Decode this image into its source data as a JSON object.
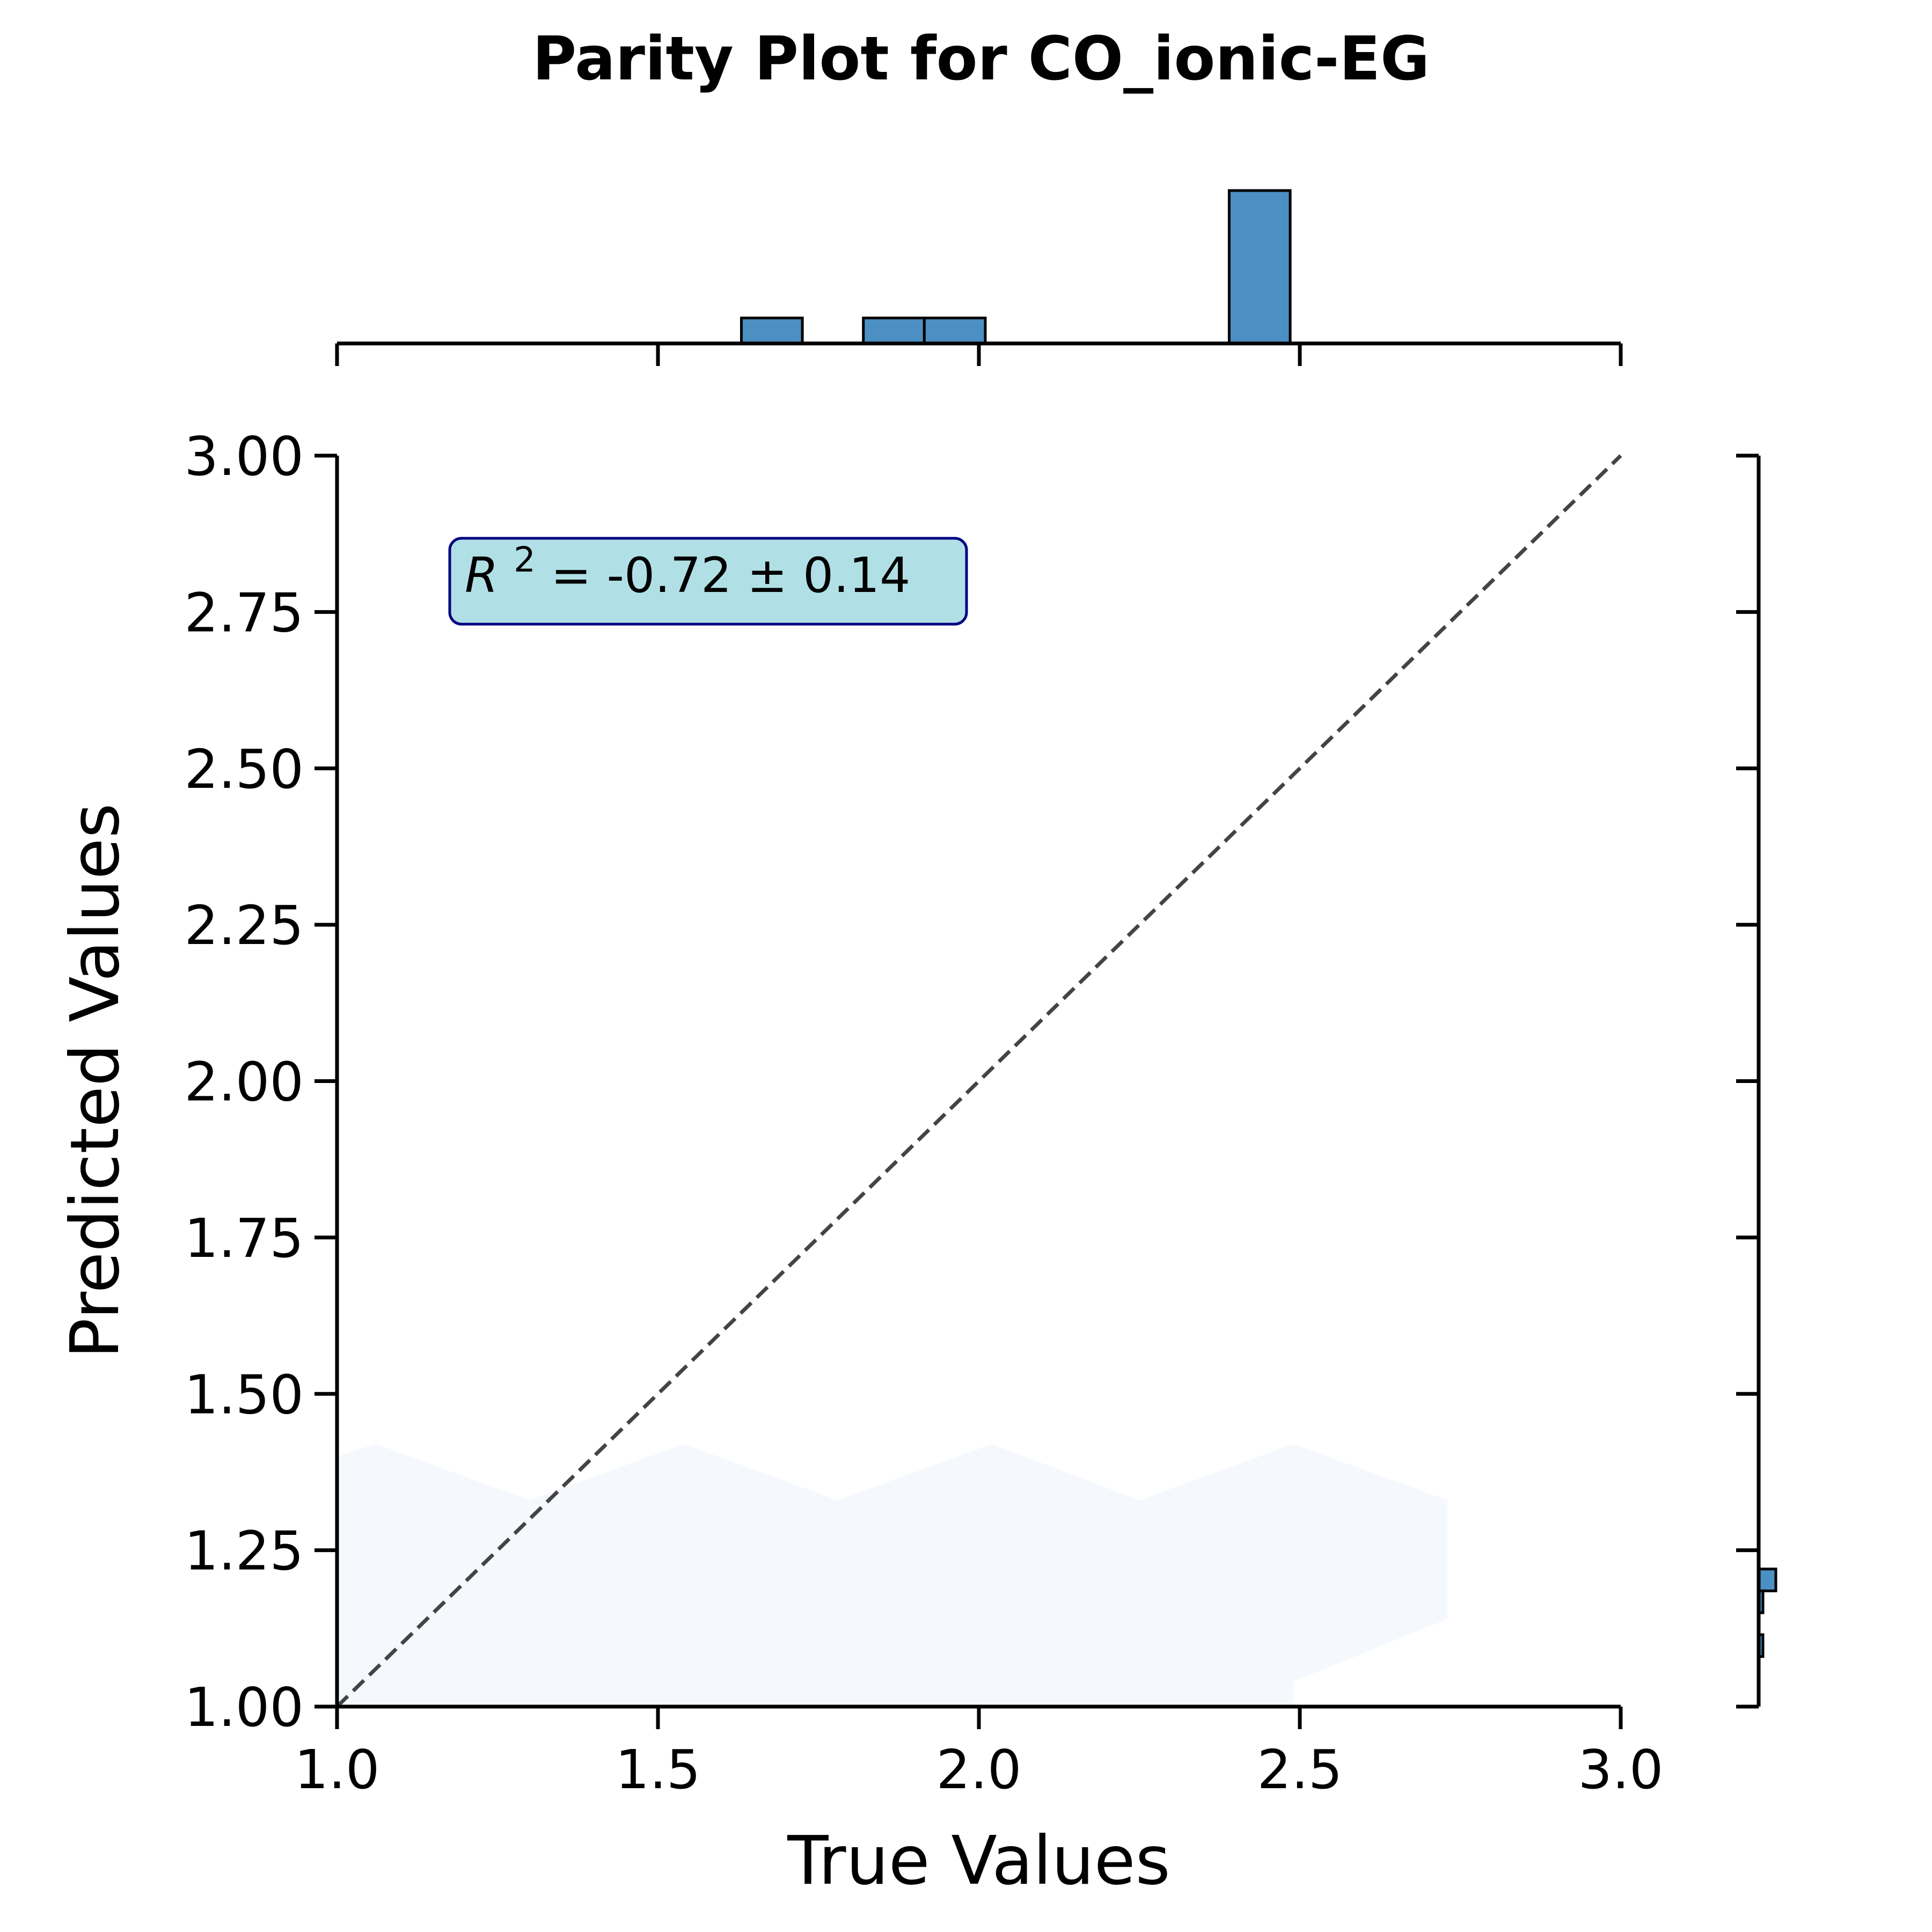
{
  "chart_data": {
    "type": "scatter",
    "title": "Parity Plot for CO_ionic-EG",
    "xlabel": "True Values",
    "ylabel": "Predicted Values",
    "xlim": [
      1.0,
      3.0
    ],
    "ylim": [
      1.0,
      3.0
    ],
    "xticks": [
      "1.0",
      "1.5",
      "2.0",
      "2.5",
      "3.0"
    ],
    "yticks": [
      "1.00",
      "1.25",
      "1.50",
      "1.75",
      "2.00",
      "2.25",
      "2.50",
      "2.75",
      "3.00"
    ],
    "annotation": {
      "r2_symbol": "R",
      "r2_exponent": "2",
      "r2_text": " = -0.72 ± 0.14",
      "box_fill": "#b0e0e6",
      "box_stroke": "#000080"
    },
    "parity_line": {
      "from": [
        1.0,
        1.0
      ],
      "to": [
        3.0,
        3.0
      ],
      "style": "dashed",
      "color": "#444444"
    },
    "grid": false,
    "density_color": "#f5f9fe",
    "density_region": [
      [
        1.0,
        1.0
      ],
      [
        1.0,
        1.4
      ],
      [
        1.06,
        1.42
      ],
      [
        1.3,
        1.33
      ],
      [
        1.54,
        1.42
      ],
      [
        1.78,
        1.33
      ],
      [
        2.02,
        1.42
      ],
      [
        2.25,
        1.33
      ],
      [
        2.49,
        1.42
      ],
      [
        2.73,
        1.33
      ],
      [
        2.73,
        1.14
      ],
      [
        2.49,
        1.04
      ],
      [
        2.49,
        1.0
      ]
    ],
    "top_histogram": {
      "color": "#4c8fc2",
      "bins": [
        {
          "x0": 1.63,
          "x1": 1.725,
          "count": 1
        },
        {
          "x0": 1.82,
          "x1": 1.915,
          "count": 1
        },
        {
          "x0": 1.915,
          "x1": 2.01,
          "count": 1
        },
        {
          "x0": 2.39,
          "x1": 2.485,
          "count": 6
        }
      ]
    },
    "right_histogram": {
      "color": "#4c8fc2",
      "bins": [
        {
          "y0": 1.185,
          "y1": 1.22,
          "count": 4
        },
        {
          "y0": 1.15,
          "y1": 1.185,
          "count": 1
        },
        {
          "y0": 1.08,
          "y1": 1.115,
          "count": 1
        }
      ]
    }
  }
}
